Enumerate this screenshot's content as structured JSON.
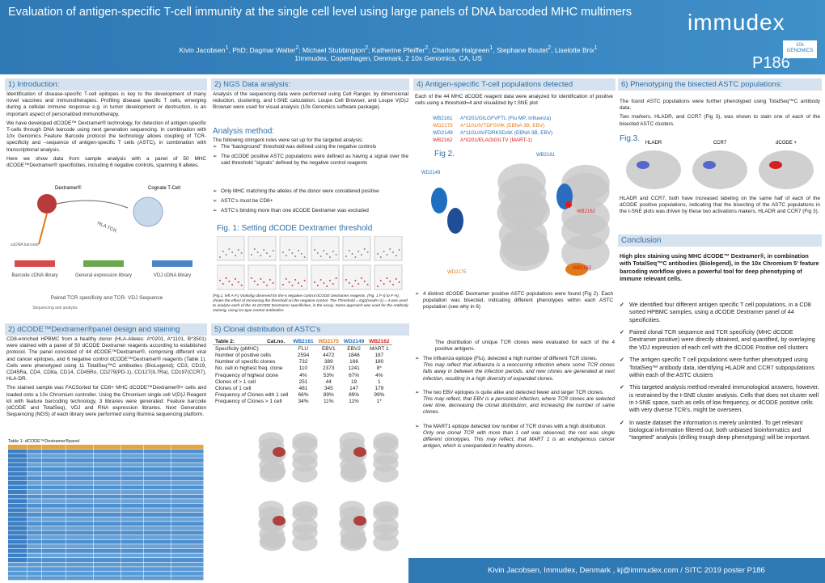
{
  "header": {
    "title": "Evaluation of antigen-specific T-cell immunity at the single cell level using large panels of DNA barcoded MHC multimers",
    "authors": [
      {
        "name": "Kivin Jacobsen",
        "sup": "1"
      },
      {
        "name": ", PhD; Dagmar Walter",
        "sup": "2"
      },
      {
        "name": "; Michael Stubbington",
        "sup": "2"
      },
      {
        "name": "; Katherine Pfeiffer",
        "sup": "2"
      },
      {
        "name": "; Charlotte Halgreen",
        "sup": "1"
      },
      {
        "name": ", Stephane Boutet",
        "sup": "2"
      },
      {
        "name": ", Liselotte Brix",
        "sup": "1"
      }
    ],
    "affiliation": "1Immudex, Copenhagen, Denmark, 2 10x Genomics, CA, US",
    "logo": "immudex",
    "logo2": "10x GENOMICS",
    "poster_id": "P186"
  },
  "intro": {
    "heading": "1) Introduction:",
    "paragraphs": [
      "Identification of disease-specific T-cell epitopes is key to the development of many novel vaccines and immunotherapies. Profiling disease specific T cells, emerging during a cellular immune response e.g. in tumor development or destruction, is an important aspect of personalized immunotherapy.",
      "We have developed dCODE™ Dextramer® technology, for detection of antigen specific T-cells through DNA barcode using next generation sequencing. In combination with 10x Genomics Feature Barcode protocol the technology allows coupling of TCR-specificity and –sequence of antigen-specific T cells (ASTC), in combination with transcriptional analysis.",
      "Here we show data from sample analysis with a panel of 50 MHC dCODE™Dextramer® specificities, including 6 negative controls, spanning 8 alleles."
    ],
    "diagram": {
      "dextramer": "Dextramer®",
      "tcell": "Cognate T-Cell",
      "ssdna": "ssDNA barcode",
      "hla_tcr": "HLA TCR",
      "libraries": [
        "Barcode cDNA library",
        "General expression library",
        "VDJ cDNA library"
      ],
      "paired": "Paired TCR specificity and TCR- VDJ Sequence",
      "sequencing": "Sequencing and analysis"
    }
  },
  "panel": {
    "heading": "2) dCODE™Dextramer®panel design and staining",
    "paragraphs": [
      "CD8-enriched HPBMC from a healthy donor (HLA-Alleles: A*0201, A*1101, B*3501) were stained with a panel of 50 dCODE Dextramer reagents according to established protocol. The panel consisted of 44 dCODE™Dextramer®, comprising different viral and cancer epitopes, and 6 negative control dCODE™Dextramer® reagents (Table 1). Cells were phenotyped using 11 TotalSeq™C antibodies (BioLegend); CD3, CD19, CD45Ra, CD4, CD8a, CD14, CD45Ro, CD279(PD-1), CD127(IL7Ra), CD197(CCR7), HLA-DR.",
      "The stained sample was FACSorted for CD8+ MHC dCODE™Dextramer®+ cells and loaded onto a 10x Chromium controller. Using the Chromium single cell V(D)J Reagent kit with feature barcoding technology, 3 libraries were generated: Feature barcode (dCODE and TotalSeq), VDJ and RNA expression libraries. Next Generation Sequencing (NGS) of each library were performed using Illumina sequencing platform."
    ],
    "table_caption": "Table 1: dCODE™Dextramer®panel"
  },
  "ngs": {
    "heading": "2) NGS Data analysis:",
    "paragraph": "Analysis of the sequencing data were performed using Cell Ranger, by dimensional reduction, clustering, and t-SNE calculation. Loupe Cell Browser, and Loupe V(D)J Browser were used for visual analysis (10x Genomics software package).",
    "method_heading": "Analysis method:",
    "method_intro": "The following stringent rules were set up for the targeted analysis:",
    "bullets": [
      "The “background” threshold was defined using the negative controls",
      "The dCODE positive ASTC populations were defined as having a signal over the said threshold “signals” defined by the negative control reagents",
      "Only MHC matching the alleles of the donor were considered positive",
      "ASTC’s must be CD8+",
      "ASTC’s binding more than one dCODE Dextramer was excluded"
    ],
    "fig1_title": "Fig. 1: Setting dCODE Dextramer threshold",
    "fig1_caption": "(Fig.1, left A-F.) Violin/jig observed for the 6 negative control dCODE Dextramer reagents. (Fig. 1 F-I) to F-H), shows the effect of increasing the threshold on the negative control. The Threshold = log2(reads+1) = 4 was used to analyze each of the 44 dCODE Dextramer specificities, in the assay. Same approach was used for the Antibody staining, using iso type control antibodies."
  },
  "clonal": {
    "heading": "5) Clonal distribution of ASTC’s",
    "table": {
      "title": "Table 2:",
      "catno": "Cat.no.",
      "samples": [
        {
          "id": "WB2161",
          "color": "#1f6fc0"
        },
        {
          "id": "WD2175",
          "color": "#e07b1a"
        },
        {
          "id": "WD2149",
          "color": "#1f6fc0"
        },
        {
          "id": "WB2162",
          "color": "#d62020"
        }
      ],
      "rows": [
        {
          "label": "Specificity (pMHC)",
          "values": [
            "FLU",
            "EBV1",
            "EBV2",
            "MART 1"
          ]
        },
        {
          "label": "Number of positive cells",
          "values": [
            "2594",
            "4472",
            "1846",
            "187"
          ]
        },
        {
          "label": "Number of specific clones",
          "values": [
            "732",
            "389",
            "166",
            "180"
          ]
        },
        {
          "label": "No. cell in highest freq. clone",
          "values": [
            "110",
            "2373",
            "1241",
            "8*"
          ]
        },
        {
          "label": "Frequency of highest clone",
          "values": [
            "4%",
            "53%",
            "67%",
            "4%"
          ]
        },
        {
          "label": "Clones of > 1 cell",
          "values": [
            "251",
            "44",
            "19",
            "1"
          ]
        },
        {
          "label": "Clones of 1 cell",
          "values": [
            "481",
            "345",
            "147",
            "179"
          ]
        },
        {
          "label": "Frequency of Clones with 1 cell",
          "values": [
            "66%",
            "89%",
            "89%",
            "99%"
          ]
        },
        {
          "label": "Frequency of Clones > 1 cell",
          "values": [
            "34%",
            "11%",
            "11%",
            "1*"
          ]
        }
      ]
    },
    "intro": "The distribution of unique TCR clones were evaluated for each of the 4 positive antigens.",
    "bullets": [
      {
        "text": "The influenza epitope (Flu), detected a high number of different TCR clones.",
        "note": "This may reflect that influenza is a reoccurring infection where some TCR clones falls away in between the infection periods, and new clones are generated at next infection, resulting in a high diversity of expanded clones."
      },
      {
        "text": "The two EBV epitopes is quite alike and detected fewer and larger TCR clones.",
        "note": "This may reflect, that EBV is a persistent infection, where TCR clones are selected over time, decreasing the clonal distribution, and increasing the number of same clones."
      },
      {
        "text": "The MART1 epitope detected low number of TCR clones with a high distribution.",
        "note": "Only one clonal TCR with more than 1 cell was observed, the rest was single different clonotypes. This may reflect, that MART 1 is an endogenous cancer antigen, which is unexpanded in healthy donors.."
      }
    ]
  },
  "populations": {
    "heading": "4) Antigen-specific T-cell populations detected",
    "intro": "Each of the 44 MHC dCODE reagent data were analyzed for identification of positive cells using a threshold=4 and visualized by t SNE plot",
    "epitopes": [
      {
        "id": "WB2161",
        "color": "#1f6fc0",
        "text": "A*0201/GILGFVFTL (Flu MP, Influenza)"
      },
      {
        "id": "WD2175",
        "color": "#e07b1a",
        "text": "A*1101/IVTDFSVIK (EBNA 3B, EBV)"
      },
      {
        "id": "WD2149",
        "color": "#1f6fc0",
        "text": "A*1101/AVFDRKSDAK (EBNA 3B, EBV)"
      },
      {
        "id": "WB2162",
        "color": "#d62020",
        "text": "A*0201/ELAGIGILTV (MART-1)"
      }
    ],
    "fig2_label": "Fig 2.",
    "plot_labels": [
      "WB2161",
      "WD2149",
      "WB2162",
      "WD2175",
      "WB2162"
    ],
    "bullet": "4 distinct dCODE Dextramer positive ASTC populations were found (Fig 2). Each population was bisected, indicating different phenotypes within each ASTC population (see why in 6)"
  },
  "phenotyping": {
    "heading": "6) Phenotyping the bisected ASTC populations:",
    "paragraphs": [
      "The found ASTC populations were further phenotyped using TotalSeq™C antibody data.",
      "Two markers, HLADR, and CCR7 (Fig 3), was shown to stain one of each of the bisected ASTC clusters."
    ],
    "fig3_label": "Fig.3.",
    "fig3_panels": [
      "HLADR",
      "CCR7",
      "dCODE +"
    ],
    "paragraph2": "HLADR and CCR7, both have increased labeling on the same half of each of the dCODE positive populations, indicating that the bisecting of the ASTC populations in the t-SNE plots was driven by these two activations makers, HLADR and CCR7 (Fig 3)."
  },
  "conclusion": {
    "heading": "Conclusion",
    "lead": "High plex staining using MHC dCODE™ Dextramer®, in combination with TotalSeq™C antibodies (Biolegend), in the 10x Chromium 5’ feature barcoding workflow gives a powerful tool for deep phenotyping of immune relevant cells.",
    "points": [
      "We identified four different antigen specific T cell populations, in a CD8 sorted HPBMC samples, using a dCODE Dextramer panel of 44 specificities.",
      "Paired clonal TCR sequence and TCR specificity (MHC dCODE Dextramer positive) were directly obtained, and quantified, by overlaying the VDJ expression of each cell with the dCODE Positive cell clusters",
      "The antigen specific T cell populations were further phenotyped using TotalSeq™ antibody data, identifying HLADR and CCR7 subpopulations within each of the ASTC clusters",
      "This targeted analysis method revealed immunological answers, however, is restrained by the t-SNE cluster analysis. Cells that does not cluster well in t-SNE space, such as cells of low frequency, or dCODE positive cells with very diverse TCR's, might be overseen.",
      "In waste dataset the information is merely unlimited. To get relevant biological information filtered out, both unbiased bioinformatics and “targeted” analysis (drilling trough deep phenotyping) will be important."
    ]
  },
  "footer": "Kivin Jacobsen, Immudex, Denmark , kj@immudex.com / SITC 2019 poster P186"
}
